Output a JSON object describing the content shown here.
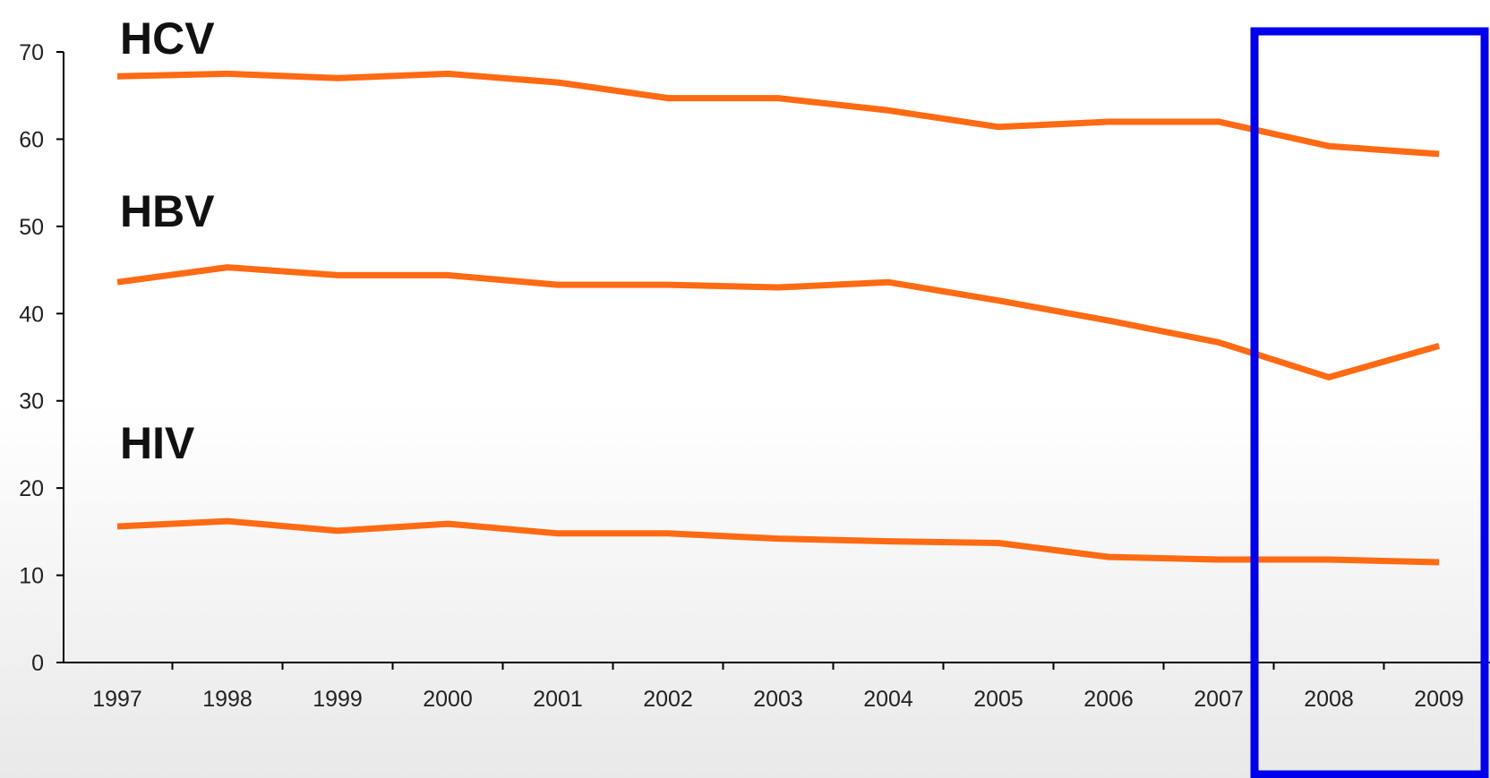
{
  "chart_data": {
    "type": "line",
    "title": "",
    "xlabel": "",
    "ylabel": "",
    "x": [
      "1997",
      "1998",
      "1999",
      "2000",
      "2001",
      "2002",
      "2003",
      "2004",
      "2005",
      "2006",
      "2007",
      "2008",
      "2009"
    ],
    "ylim": [
      0,
      70
    ],
    "yticks": [
      0,
      10,
      20,
      30,
      40,
      50,
      60,
      70
    ],
    "grid": false,
    "legend": "none",
    "line_color": "#ff6a13",
    "series": [
      {
        "name": "HCV",
        "values": [
          67.2,
          67.5,
          67.0,
          67.5,
          66.5,
          64.7,
          64.7,
          63.3,
          61.4,
          62.0,
          62.0,
          59.2,
          58.3
        ]
      },
      {
        "name": "HBV",
        "values": [
          43.6,
          45.3,
          44.4,
          44.4,
          43.3,
          43.3,
          43.0,
          43.6,
          41.5,
          39.2,
          36.7,
          32.7,
          36.3
        ]
      },
      {
        "name": "HIV",
        "values": [
          15.6,
          16.2,
          15.1,
          15.9,
          14.8,
          14.8,
          14.2,
          13.9,
          13.7,
          12.1,
          11.8,
          11.8,
          11.5
        ]
      }
    ],
    "annotations": [
      {
        "type": "highlight-box",
        "x_range": [
          "2007",
          "2009"
        ],
        "color": "#0000ee"
      }
    ]
  }
}
